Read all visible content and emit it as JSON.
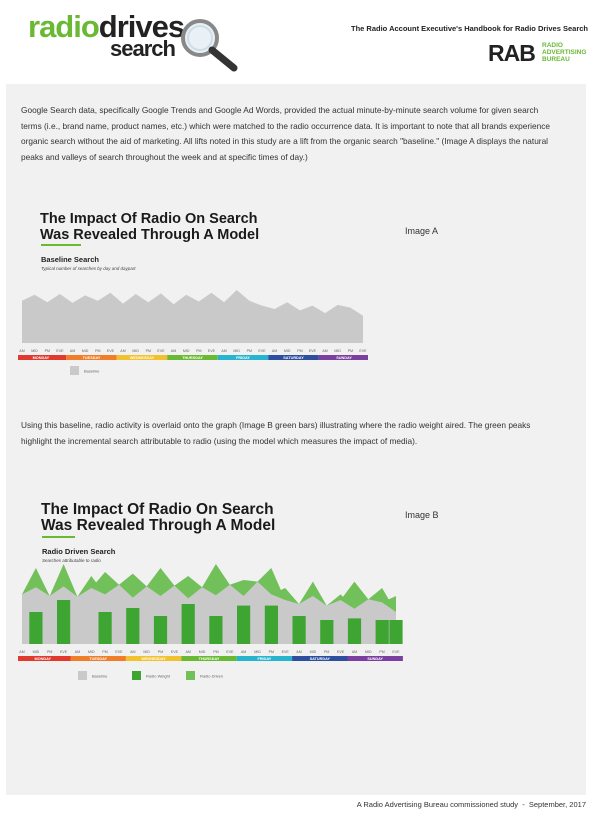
{
  "header": {
    "logo_part1": "radio",
    "logo_part2": "drives",
    "logo_part3": "search",
    "handbook_title": "The Radio Account Executive's Handbook for Radio Drives Search",
    "rab_abbr": "RAB",
    "rab_line1": "RADIO",
    "rab_line2": "ADVERTISING",
    "rab_line3": "BUREAU"
  },
  "body": {
    "paragraph1": "Google Search data, specifically Google Trends and Google Ad Words, provided the actual minute-by-minute search volume for given search terms (i.e., brand name, product names, etc.) which were matched to the radio occurrence data. It is important to note that all brands experience organic search without the aid of marketing.  All lifts noted in this study are a lift from the organic search \"baseline.\" (Image A displays the natural peaks and valleys of search throughout the week and at specific times of day.)",
    "paragraph2": "Using this baseline, radio activity is overlaid onto the graph (Image B green bars) illustrating where the radio weight aired. The green peaks highlight the incremental search attributable to radio (using the model which measures the impact of media).",
    "image_a_label": "Image A",
    "image_b_label": "Image B"
  },
  "chart_a": {
    "title_line1": "The Impact Of Radio On Search",
    "title_line2": "Was Revealed Through A Model",
    "subtitle": "Baseline Search",
    "caption": "Typical number of searches by day and daypart",
    "legend": [
      "Baseline"
    ]
  },
  "chart_b": {
    "title_line1": "The Impact Of Radio On Search",
    "title_line2": "Was Revealed Through A Model",
    "subtitle": "Radio Driven Search",
    "caption": "Searches attributable to radio",
    "legend": [
      "Baseline",
      "Radio Weight",
      "Radio Driven"
    ]
  },
  "chart_data": [
    {
      "type": "area",
      "categories": [
        "AM",
        "MID",
        "PM",
        "EVE",
        "AM",
        "MID",
        "PM",
        "EVE",
        "AM",
        "MID",
        "PM",
        "EVE",
        "AM",
        "MID",
        "PM",
        "EVE",
        "AM",
        "MID",
        "PM",
        "EVE",
        "AM",
        "MID",
        "PM",
        "EVE",
        "AM",
        "MID",
        "PM",
        "EVE"
      ],
      "days": [
        "MONDAY",
        "TUESDAY",
        "WEDNESDAY",
        "THURSDAY",
        "FRIDAY",
        "SATURDAY",
        "SUNDAY"
      ],
      "series": [
        {
          "name": "Baseline",
          "values": [
            0.62,
            0.71,
            0.6,
            0.72,
            0.59,
            0.7,
            0.62,
            0.74,
            0.58,
            0.72,
            0.6,
            0.73,
            0.57,
            0.71,
            0.61,
            0.74,
            0.6,
            0.78,
            0.62,
            0.55,
            0.5,
            0.6,
            0.48,
            0.55,
            0.44,
            0.56,
            0.52,
            0.4
          ]
        }
      ]
    },
    {
      "type": "bar",
      "categories": [
        "AM",
        "MID",
        "PM",
        "EVE",
        "AM",
        "MID",
        "PM",
        "EVE",
        "AM",
        "MID",
        "PM",
        "EVE",
        "AM",
        "MID",
        "PM",
        "EVE",
        "AM",
        "MID",
        "PM",
        "EVE",
        "AM",
        "MID",
        "PM",
        "EVE",
        "AM",
        "MID",
        "PM",
        "EVE"
      ],
      "days": [
        "MONDAY",
        "TUESDAY",
        "WEDNESDAY",
        "THURSDAY",
        "FRIDAY",
        "SATURDAY",
        "SUNDAY"
      ],
      "series": [
        {
          "name": "Baseline",
          "values": [
            0.62,
            0.71,
            0.6,
            0.72,
            0.59,
            0.7,
            0.62,
            0.74,
            0.58,
            0.72,
            0.6,
            0.73,
            0.57,
            0.71,
            0.61,
            0.74,
            0.6,
            0.78,
            0.62,
            0.55,
            0.5,
            0.6,
            0.48,
            0.55,
            0.44,
            0.56,
            0.52,
            0.4
          ]
        },
        {
          "name": "Radio Weight",
          "values": [
            0,
            0.4,
            0,
            0.55,
            0,
            0,
            0.4,
            0,
            0.45,
            0,
            0.35,
            0,
            0.5,
            0,
            0.35,
            0,
            0.48,
            0,
            0.48,
            0,
            0.35,
            0,
            0.3,
            0,
            0.32,
            0,
            0.3,
            0.3
          ]
        },
        {
          "name": "Radio Driven",
          "values": [
            0,
            0.95,
            0,
            1.0,
            0,
            0.85,
            0.9,
            0,
            0.88,
            0,
            0.95,
            0,
            0.85,
            0,
            1.0,
            0,
            0.8,
            0,
            0.95,
            0.7,
            0,
            0.78,
            0,
            0.62,
            0.78,
            0,
            0.7,
            0.6
          ]
        }
      ]
    }
  ]
}
